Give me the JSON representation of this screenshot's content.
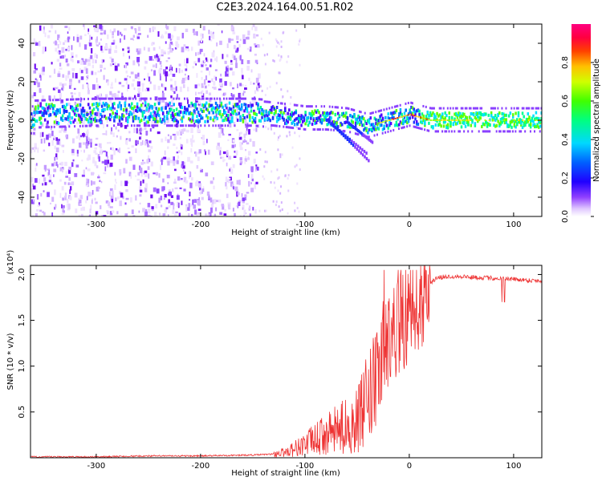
{
  "title": "C2E3.2024.164.00.51.R02",
  "chart_data": [
    {
      "type": "heatmap",
      "description_of_content": "spectrogram",
      "xlabel": "Height of straight line (km)",
      "ylabel": "Frequency (Hz)",
      "xlim": [
        -363,
        127
      ],
      "ylim": [
        -50,
        50
      ],
      "xticks": [
        -300,
        -200,
        -100,
        0,
        100
      ],
      "yticks": [
        -40,
        -20,
        0,
        20,
        40
      ],
      "colorbar": {
        "label": "Normalized spectral amplitude",
        "range": [
          0.0,
          1.0
        ],
        "ticks": [
          0.0,
          0.2,
          0.4,
          0.6,
          0.8
        ],
        "colormap": [
          "#ffffff",
          "#d8b0ff",
          "#8000ff",
          "#0000ff",
          "#00c8ff",
          "#00ff00",
          "#ffff00",
          "#ff8000",
          "#ff0000",
          "#ff0080"
        ]
      },
      "ridge": [
        {
          "x": -360,
          "y": 3
        },
        {
          "x": -300,
          "y": 4
        },
        {
          "x": -200,
          "y": 4
        },
        {
          "x": -150,
          "y": 4
        },
        {
          "x": -130,
          "y": 3
        },
        {
          "x": -100,
          "y": 1
        },
        {
          "x": -80,
          "y": 1
        },
        {
          "x": -60,
          "y": 0
        },
        {
          "x": -40,
          "y": -3
        },
        {
          "x": -20,
          "y": 0
        },
        {
          "x": 0,
          "y": 3
        },
        {
          "x": 20,
          "y": 0
        },
        {
          "x": 60,
          "y": 0
        },
        {
          "x": 127,
          "y": 0
        }
      ]
    },
    {
      "type": "line",
      "xlabel": "Height of straight line (km)",
      "ylabel": "SNR (10 * v/v)",
      "y_multiplier_label": "(x10⁴)",
      "xlim": [
        -363,
        127
      ],
      "ylim": [
        0,
        2.1
      ],
      "xticks": [
        -300,
        -200,
        -100,
        0,
        100
      ],
      "yticks": [
        0.5,
        1.0,
        1.5,
        2.0
      ],
      "ytick_labels": [
        "0.5",
        "1.0",
        "1.5",
        "2.0"
      ],
      "line_color": "#ee3333",
      "series": [
        {
          "x": [
            -363,
            -300,
            -250,
            -200,
            -150,
            -130,
            -120,
            -110,
            -100,
            -90,
            -80,
            -70,
            -60,
            -50,
            -40,
            -30,
            -25,
            -20,
            -15,
            -10,
            -5,
            0,
            5,
            10,
            15,
            20,
            25,
            30,
            40,
            50,
            60,
            80,
            100,
            110,
            127
          ],
          "values": [
            0.01,
            0.01,
            0.02,
            0.02,
            0.03,
            0.04,
            0.06,
            0.1,
            0.15,
            0.2,
            0.25,
            0.3,
            0.35,
            0.4,
            0.6,
            0.9,
            1.2,
            1.3,
            1.4,
            1.45,
            1.5,
            1.5,
            1.55,
            1.7,
            1.8,
            1.9,
            1.95,
            1.97,
            1.98,
            1.98,
            1.97,
            1.96,
            1.95,
            1.94,
            1.93
          ]
        }
      ]
    }
  ]
}
